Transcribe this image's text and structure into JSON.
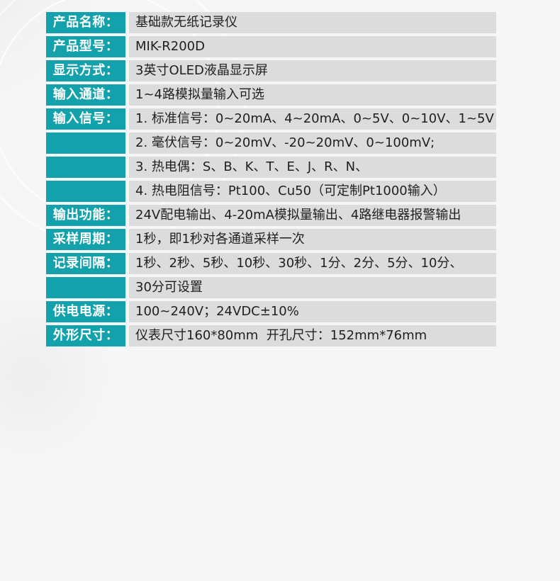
{
  "colors": {
    "accent": "#13a1ab",
    "row_bg": "#dcdcdc",
    "page_bg": "#f7f6f6",
    "label_text": "#ffffff",
    "value_text": "#1f1f1f"
  },
  "spec_table": {
    "rows": [
      {
        "label": "产品名称：",
        "value": "基础款无纸记录仪"
      },
      {
        "label": "产品型号：",
        "value": "MIK-R200D"
      },
      {
        "label": "显示方式：",
        "value": "3英寸OLED液晶显示屏"
      },
      {
        "label": "输入通道：",
        "value": "1~4路模拟量输入可选"
      },
      {
        "label": "输入信号：",
        "value": "1. 标准信号：0~20mA、4~20mA、0~5V、0~10V、1~5V"
      },
      {
        "label": "",
        "value": "2. 毫伏信号：0~20mV、-20~20mV、0~100mV;"
      },
      {
        "label": "",
        "value": "3. 热电偶：S、B、K、T、E、J、R、N、"
      },
      {
        "label": "",
        "value": "4. 热电阻信号：Pt100、Cu50（可定制Pt1000输入）"
      },
      {
        "label": "输出功能：",
        "value": "24V配电输出、4-20mA模拟量输出、4路继电器报警输出"
      },
      {
        "label": "采样周期：",
        "value": "1秒，即1秒对各通道采样一次"
      },
      {
        "label": "记录间隔：",
        "value": "1秒、2秒、5秒、10秒、30秒、1分、2分、5分、10分、"
      },
      {
        "label": "",
        "value": "30分可设置"
      },
      {
        "label": "供电电源：",
        "value": "100~240V；24VDC±10%"
      },
      {
        "label": "外形尺寸：",
        "value": "仪表尺寸160*80mm  开孔尺寸：152mm*76mm"
      }
    ]
  }
}
